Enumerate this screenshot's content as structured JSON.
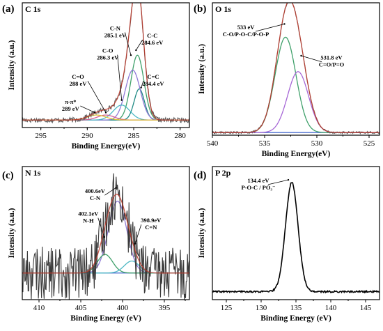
{
  "chart_data": [
    {
      "id": "a",
      "type": "line",
      "tag": "(a)",
      "title": "C 1s",
      "xlabel": "Binding Energy(eV)",
      "ylabel": "Intensity (a.u.)",
      "xlim": [
        297,
        279
      ],
      "xticks": [
        295,
        290,
        285,
        280
      ],
      "ylim": [
        0,
        1
      ],
      "baseline": 0.06,
      "noise": 0.02,
      "peaks": [
        {
          "name": "C-C",
          "center": 284.6,
          "height": 0.52,
          "width": 0.7,
          "color": "#3fa06a"
        },
        {
          "name": "C=C",
          "center": 284.4,
          "height": 0.25,
          "width": 0.55,
          "color": "#1f8a84"
        },
        {
          "name": "C-N",
          "center": 285.1,
          "height": 0.4,
          "width": 0.8,
          "color": "#8f7ad6"
        },
        {
          "name": "C-O",
          "center": 286.3,
          "height": 0.12,
          "width": 0.9,
          "color": "#4db8c4"
        },
        {
          "name": "C=O",
          "center": 288.0,
          "height": 0.04,
          "width": 0.9,
          "color": "#d35f96"
        },
        {
          "name": "π-π*",
          "center": 289.0,
          "height": 0.04,
          "width": 1.0,
          "color": "#e0c237"
        }
      ],
      "annotations": [
        {
          "lines": [
            "C-C",
            "284.6 eV"
          ],
          "x": 283.0,
          "y": 0.72,
          "ptx": 284.75,
          "pty": 0.62,
          "anchor": "middle"
        },
        {
          "lines": [
            "C=C",
            "284.4 eV"
          ],
          "x": 282.9,
          "y": 0.39,
          "ptx": 284.2,
          "pty": 0.32,
          "anchor": "middle"
        },
        {
          "lines": [
            "C-N",
            "285.1 eV"
          ],
          "x": 287.0,
          "y": 0.78,
          "ptx": 285.3,
          "pty": 0.58,
          "anchor": "middle"
        },
        {
          "lines": [
            "C-O",
            "286.3 eV"
          ],
          "x": 287.8,
          "y": 0.6,
          "ptx": 286.3,
          "pty": 0.22,
          "anchor": "middle"
        },
        {
          "lines": [
            "C=O",
            "288 eV"
          ],
          "x": 291.0,
          "y": 0.39,
          "ptx": 288.0,
          "pty": 0.12,
          "anchor": "middle"
        },
        {
          "lines": [
            "π-π*",
            "289 eV"
          ],
          "x": 291.8,
          "y": 0.19,
          "ptx": 289.2,
          "pty": 0.12,
          "anchor": "middle"
        }
      ]
    },
    {
      "id": "b",
      "type": "line",
      "tag": "(b)",
      "title": "O 1s",
      "xlabel": "Binding Energy(eV)",
      "ylabel": "Intensity (a.u.)",
      "xlim": [
        540,
        524
      ],
      "xticks": [
        540,
        535,
        530,
        525
      ],
      "ylim": [
        0,
        1
      ],
      "baseline": 0.02,
      "noise": 0.008,
      "peaks": [
        {
          "name": "C-O/P-O-C/P-O-P",
          "center": 533.0,
          "height": 0.72,
          "width": 1.0,
          "color": "#3fa06a"
        },
        {
          "name": "C=O/P=O",
          "center": 531.8,
          "height": 0.46,
          "width": 1.0,
          "color": "#a667d6"
        }
      ],
      "annotations": [
        {
          "lines": [
            "533 eV",
            "C-O/P-O-C/P-O-P"
          ],
          "x": 536.8,
          "y": 0.8,
          "ptx": 533.1,
          "pty": 0.84,
          "anchor": "middle"
        },
        {
          "lines": [
            "531.8 eV",
            "C=O/P=O"
          ],
          "x": 528.6,
          "y": 0.57,
          "ptx": 531.5,
          "pty": 0.6,
          "anchor": "middle"
        }
      ]
    },
    {
      "id": "c",
      "type": "line",
      "tag": "(c)",
      "title": "N 1s",
      "xlabel": "Binding Energy (eV)",
      "ylabel": "Intensity (a.u.)",
      "xlim": [
        412,
        392
      ],
      "xticks": [
        410,
        405,
        400,
        395
      ],
      "ylim": [
        0,
        1
      ],
      "baseline": 0.2,
      "noise": 0.2,
      "peaks": [
        {
          "name": "C-N",
          "center": 400.6,
          "height": 0.54,
          "width": 1.1,
          "color": "#8f7ad6"
        },
        {
          "name": "N-H",
          "center": 402.1,
          "height": 0.14,
          "width": 0.9,
          "color": "#3fa06a"
        },
        {
          "name": "C=N",
          "center": 398.9,
          "height": 0.09,
          "width": 0.9,
          "color": "#4db8c4"
        }
      ],
      "annotations": [
        {
          "lines": [
            "400.6eV",
            "C-N"
          ],
          "x": 403.3,
          "y": 0.8,
          "ptx": 400.8,
          "pty": 0.84,
          "anchor": "middle"
        },
        {
          "lines": [
            "402.1eV",
            "N-H"
          ],
          "x": 404.1,
          "y": 0.63,
          "ptx": 402.2,
          "pty": 0.47,
          "anchor": "middle"
        },
        {
          "lines": [
            "398.9eV",
            "C=N"
          ],
          "x": 396.6,
          "y": 0.58,
          "ptx": 398.5,
          "pty": 0.42,
          "anchor": "middle"
        }
      ]
    },
    {
      "id": "d",
      "type": "line",
      "tag": "(d)",
      "title": "P 2p",
      "xlabel": "Binding Energy (eV)",
      "ylabel": "Intensity (a.u.)",
      "xlim": [
        123,
        147
      ],
      "xticks": [
        125,
        130,
        135,
        140,
        145
      ],
      "ylim": [
        0,
        1
      ],
      "baseline": 0.06,
      "noise": 0.006,
      "peaks": [
        {
          "name": "P-O-C / PO3-",
          "center": 134.4,
          "height": 0.82,
          "width": 0.9,
          "color": "#000000"
        }
      ],
      "annotations": [
        {
          "lines": [
            "134.4 eV",
            "P-O-C / PO₃⁻"
          ],
          "x": 129.6,
          "y": 0.88,
          "ptx": 133.9,
          "pty": 0.9,
          "anchor": "middle"
        }
      ]
    }
  ]
}
